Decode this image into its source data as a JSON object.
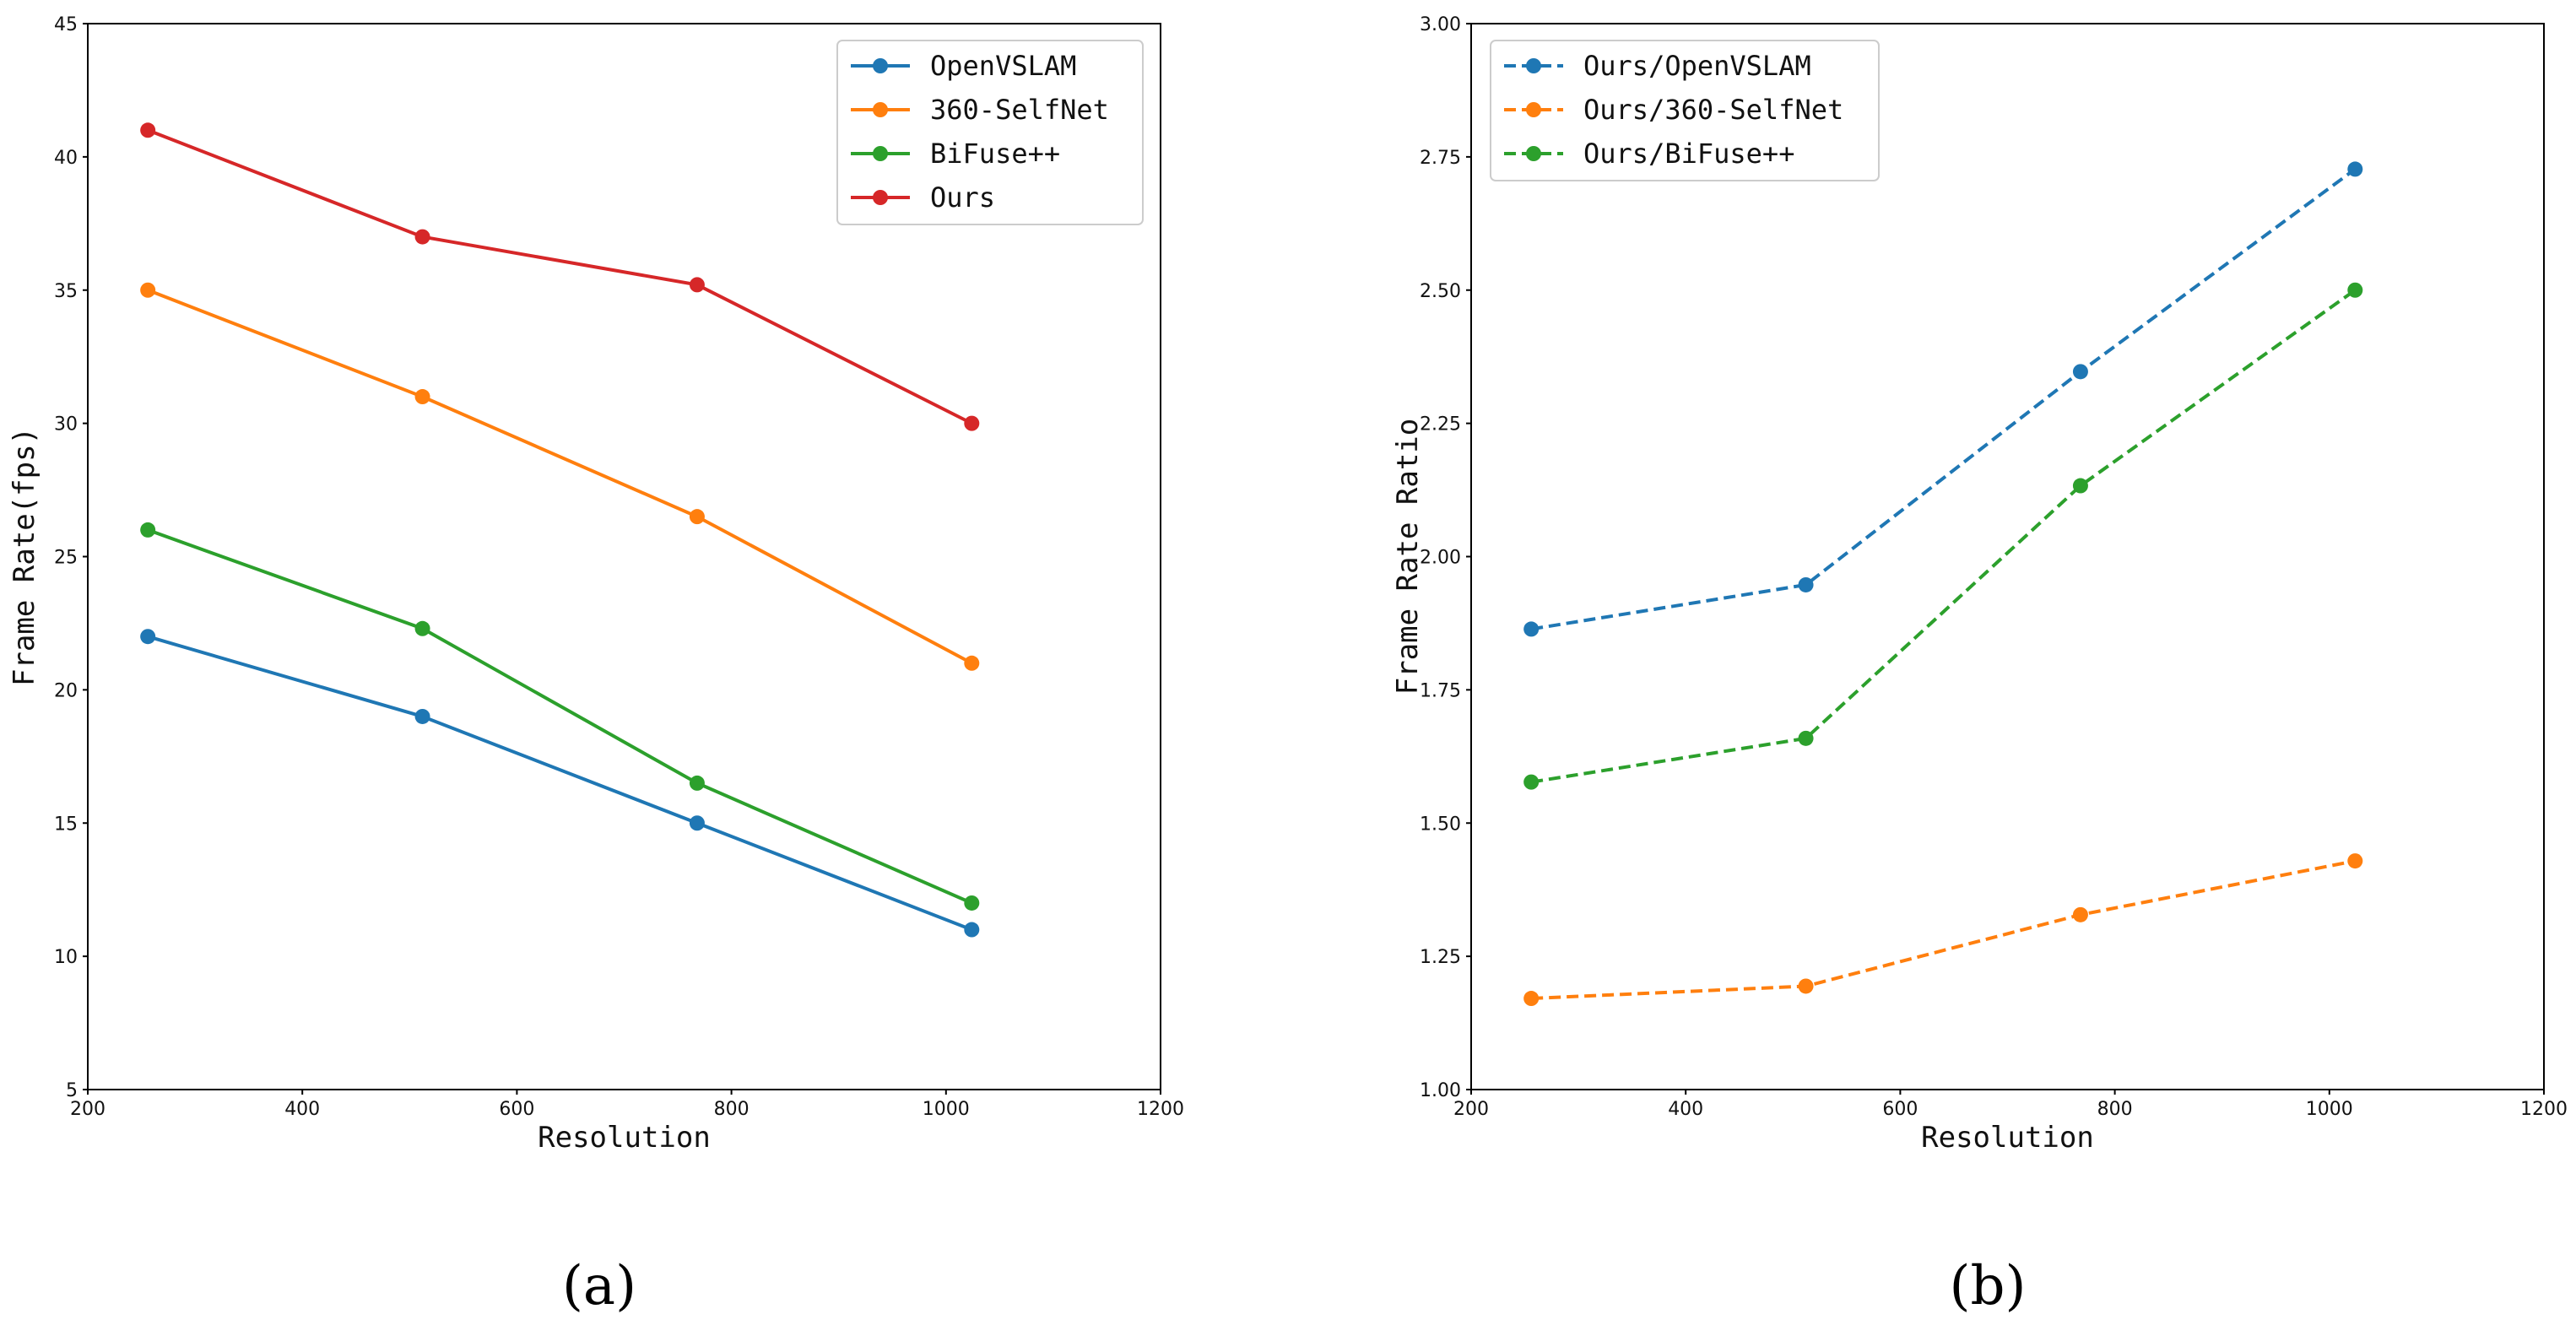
{
  "chart_data": [
    {
      "type": "line",
      "caption": "(a)",
      "xlabel": "Resolution",
      "ylabel": "Frame Rate(fps)",
      "xlim": [
        200,
        1200
      ],
      "ylim": [
        5,
        45
      ],
      "xticks": [
        "200",
        "400",
        "600",
        "800",
        "1000",
        "1200"
      ],
      "yticks": [
        "5",
        "10",
        "15",
        "20",
        "25",
        "30",
        "35",
        "40",
        "45"
      ],
      "grid": false,
      "legend_position": "top-right",
      "x": [
        256,
        512,
        768,
        1024
      ],
      "series": [
        {
          "name": "OpenVSLAM",
          "color": "#1f77b4",
          "style": "solid",
          "values": [
            22.0,
            19.0,
            15.0,
            11.0
          ]
        },
        {
          "name": "360-SelfNet",
          "color": "#ff7f0e",
          "style": "solid",
          "values": [
            35.0,
            31.0,
            26.5,
            21.0
          ]
        },
        {
          "name": "BiFuse++",
          "color": "#2ca02c",
          "style": "solid",
          "values": [
            26.0,
            22.3,
            16.5,
            12.0
          ]
        },
        {
          "name": "Ours",
          "color": "#d62728",
          "style": "solid",
          "values": [
            41.0,
            37.0,
            35.2,
            30.0
          ]
        }
      ]
    },
    {
      "type": "line",
      "caption": "(b)",
      "xlabel": "Resolution",
      "ylabel": "Frame Rate Ratio",
      "xlim": [
        200,
        1200
      ],
      "ylim": [
        1.0,
        3.0
      ],
      "xticks": [
        "200",
        "400",
        "600",
        "800",
        "1000",
        "1200"
      ],
      "yticks": [
        "1.00",
        "1.25",
        "1.50",
        "1.75",
        "2.00",
        "2.25",
        "2.50",
        "2.75",
        "3.00"
      ],
      "grid": false,
      "legend_position": "top-left",
      "x": [
        256,
        512,
        768,
        1024
      ],
      "series": [
        {
          "name": "Ours/OpenVSLAM",
          "color": "#1f77b4",
          "style": "dashed",
          "values": [
            1.864,
            1.947,
            2.347,
            2.727
          ]
        },
        {
          "name": "Ours/360-SelfNet",
          "color": "#ff7f0e",
          "style": "dashed",
          "values": [
            1.171,
            1.194,
            1.328,
            1.429
          ]
        },
        {
          "name": "Ours/BiFuse++",
          "color": "#2ca02c",
          "style": "dashed",
          "values": [
            1.577,
            1.659,
            2.133,
            2.5
          ]
        }
      ]
    }
  ]
}
